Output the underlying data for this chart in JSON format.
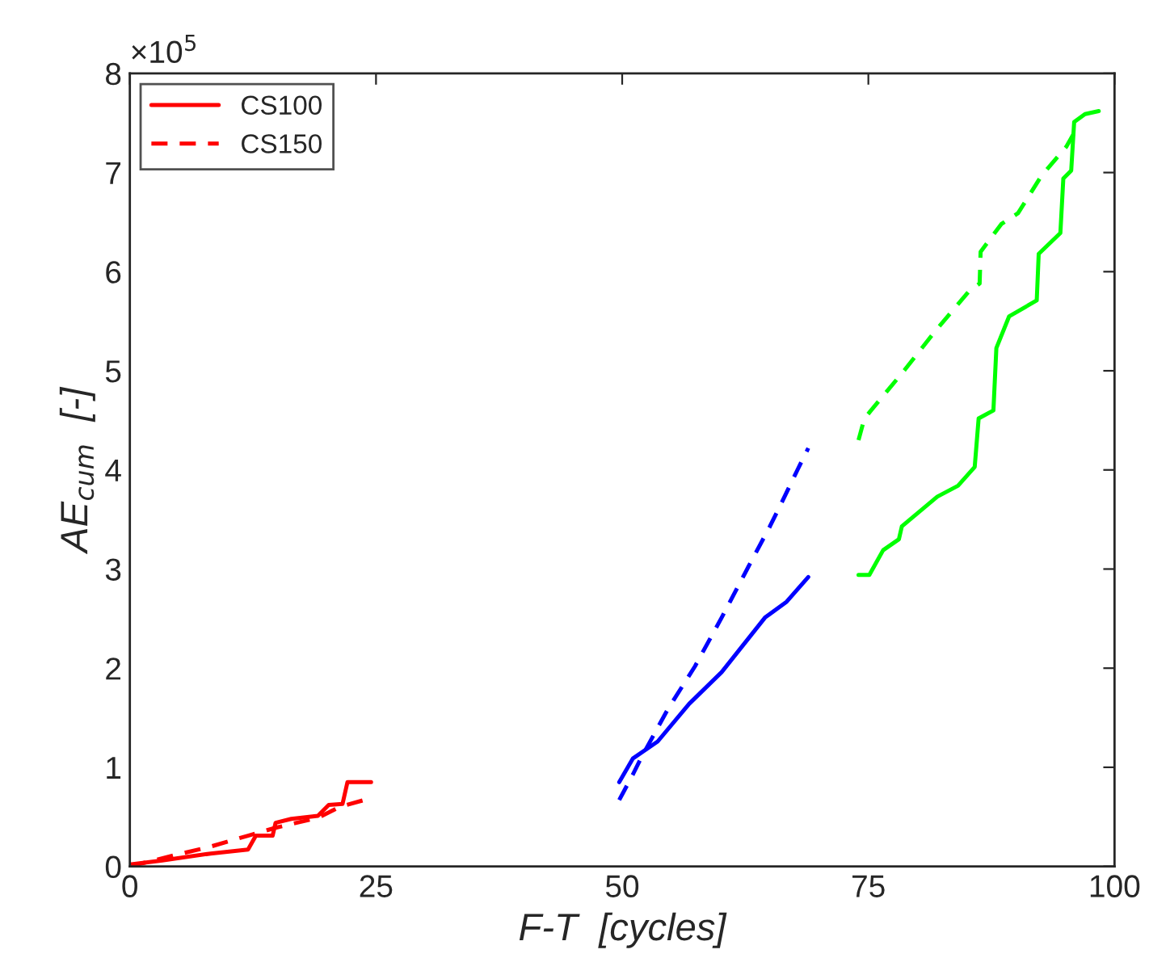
{
  "chart_data": {
    "type": "line",
    "xlabel": "F-T  [cycles]",
    "ylabel": "AE$_{cum}$  [-]",
    "annotations": [
      "×10$^{5}$"
    ],
    "xlim": [
      0,
      100
    ],
    "xticks": [
      0,
      25,
      50,
      75,
      100
    ],
    "ylim": [
      0,
      8
    ],
    "yticks": [
      0,
      1,
      2,
      3,
      4,
      5,
      6,
      7,
      8
    ],
    "grid": false,
    "legend": "top left",
    "series": [
      {
        "name": "CS100",
        "color": "#ff0000",
        "line_style": "solid",
        "x": [
          0,
          3.3,
          8.2,
          12.0,
          12.8,
          14.5,
          14.8,
          16.4,
          19.1,
          20.2,
          21.6,
          22.1,
          24.5
        ],
        "values": [
          0.02,
          0.06,
          0.13,
          0.17,
          0.31,
          0.31,
          0.44,
          0.48,
          0.51,
          0.62,
          0.63,
          0.85,
          0.85
        ]
      },
      {
        "name": "CS150",
        "color": "#ff0000",
        "line_style": "dashed",
        "x": [
          0,
          4.4,
          8.2,
          12.0,
          14.8,
          19.1,
          21.3,
          23.8
        ],
        "values": [
          0.0,
          0.11,
          0.2,
          0.31,
          0.39,
          0.49,
          0.6,
          0.67
        ]
      },
      {
        "color": "#0000ff",
        "line_style": "solid",
        "x": [
          49.7,
          51.1,
          53.6,
          56.8,
          60.1,
          64.5,
          66.7,
          68.9
        ],
        "values": [
          0.85,
          1.09,
          1.26,
          1.64,
          1.96,
          2.51,
          2.67,
          2.92
        ]
      },
      {
        "color": "#0000ff",
        "line_style": "dashed",
        "x": [
          49.7,
          51.1,
          51.9,
          54.6,
          57.4,
          60.1,
          62.8,
          65.0,
          66.1,
          67.8,
          68.9
        ],
        "values": [
          0.67,
          0.93,
          1.09,
          1.58,
          2.02,
          2.51,
          3.02,
          3.43,
          3.65,
          4.0,
          4.22
        ]
      },
      {
        "color": "#00ff00",
        "line_style": "solid",
        "x": [
          74.0,
          75.1,
          76.5,
          78.1,
          78.4,
          82.0,
          84.1,
          85.8,
          86.2,
          87.7,
          88.0,
          89.3,
          92.1,
          92.3,
          94.5,
          94.8,
          95.6,
          95.9,
          97.0,
          98.4
        ],
        "values": [
          2.94,
          2.94,
          3.19,
          3.3,
          3.43,
          3.73,
          3.84,
          4.03,
          4.52,
          4.6,
          5.23,
          5.55,
          5.71,
          6.18,
          6.39,
          6.94,
          7.02,
          7.51,
          7.59,
          7.62
        ]
      },
      {
        "color": "#00ff00",
        "line_style": "dashed",
        "x": [
          74.0,
          74.6,
          78.7,
          81.7,
          85.2,
          86.3,
          86.4,
          88.5,
          90.2,
          92.6,
          95.1,
          95.9
        ],
        "values": [
          4.3,
          4.52,
          5.01,
          5.39,
          5.8,
          5.88,
          6.2,
          6.48,
          6.59,
          6.97,
          7.26,
          7.4
        ]
      }
    ]
  }
}
